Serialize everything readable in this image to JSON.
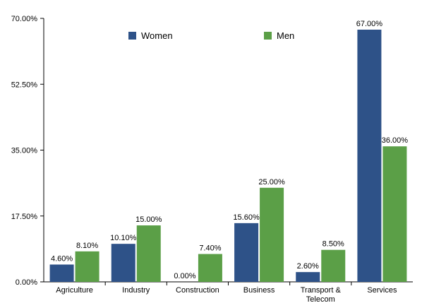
{
  "chart_data": {
    "type": "bar",
    "title": "",
    "xlabel": "",
    "ylabel": "",
    "categories": [
      [
        "Agriculture"
      ],
      [
        "Industry"
      ],
      [
        "Construction"
      ],
      [
        "Business"
      ],
      [
        "Transport &",
        "Telecom"
      ],
      [
        "Services"
      ]
    ],
    "series": [
      {
        "name": "Women",
        "color": "#2e5288",
        "values": [
          4.6,
          10.1,
          0.0,
          15.6,
          2.6,
          67.0
        ],
        "labels": [
          "4.60%",
          "10.10%",
          "0.00%",
          "15.60%",
          "2.60%",
          "67.00%"
        ]
      },
      {
        "name": "Men",
        "color": "#5b9f47",
        "values": [
          8.1,
          15.0,
          7.4,
          25.0,
          8.5,
          36.0
        ],
        "labels": [
          "8.10%",
          "15.00%",
          "7.40%",
          "25.00%",
          "8.50%",
          "36.00%"
        ]
      }
    ],
    "ylim": [
      0,
      70
    ],
    "yticks": [
      0,
      17.5,
      35,
      52.5,
      70
    ],
    "ytick_labels": [
      "0.00%",
      "17.50%",
      "35.00%",
      "52.50%",
      "70.00%"
    ],
    "grid": false,
    "legend_position": "top"
  }
}
